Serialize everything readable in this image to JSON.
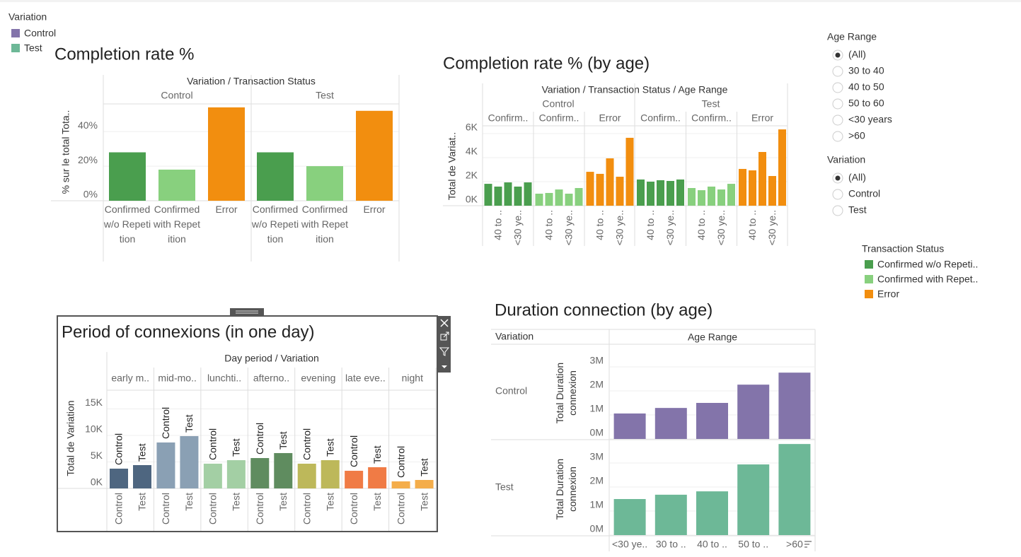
{
  "legend": {
    "title": "Variation",
    "items": [
      {
        "name": "Control",
        "color": "#8374aa"
      },
      {
        "name": "Test",
        "color": "#6db897"
      }
    ]
  },
  "filters": [
    {
      "title": "Age Range",
      "options": [
        "(All)",
        "30 to 40",
        "40 to 50",
        "50 to 60",
        "<30 years",
        ">60"
      ],
      "selected": 0
    },
    {
      "title": "Variation",
      "options": [
        "(All)",
        "Control",
        "Test"
      ],
      "selected": 0
    }
  ],
  "status_legend": {
    "title": "Transaction Status",
    "items": [
      {
        "name": "Confirmed w/o Repeti..",
        "color": "#4a9e4e"
      },
      {
        "name": "Confirmed with Repet..",
        "color": "#88d07e"
      },
      {
        "name": "Error",
        "color": "#f28e0f"
      }
    ]
  },
  "chart_data": [
    {
      "type": "bar",
      "title": "Completion rate %",
      "header": "Variation / Transaction Status",
      "ylabel": "% sur le total Tota..",
      "categories": [
        "Confirmed w/o Repetition",
        "Confirmed with Repetition",
        "Error"
      ],
      "colors": [
        "#4a9e4e",
        "#88d07e",
        "#f28e0f"
      ],
      "series": [
        {
          "name": "Control",
          "values": [
            28,
            18,
            54
          ]
        },
        {
          "name": "Test",
          "values": [
            28,
            20,
            52
          ]
        }
      ],
      "ylim": [
        0,
        56
      ],
      "yticks": [
        {
          "value": 0,
          "label": "0%"
        },
        {
          "value": 20,
          "label": "20%"
        },
        {
          "value": 40,
          "label": "40%"
        }
      ],
      "grid": true
    },
    {
      "type": "bar",
      "title": "Completion rate % (by age)",
      "header": "Variation / Transaction Status / Age Range",
      "ylabel": "Total de Variat..",
      "categories": [
        null,
        "40 to ..",
        null,
        "<30 ye..",
        null
      ],
      "colors": [
        "#4a9e4e",
        "#88d07e",
        "#f28e0f"
      ],
      "groups": [
        {
          "name": "Control",
          "panels": [
            {
              "name": "Confirm..",
              "values": [
                1820,
                1590,
                1940,
                1590,
                1940
              ]
            },
            {
              "name": "Confirm..",
              "values": [
                1000,
                1060,
                1350,
                1000,
                1470
              ]
            },
            {
              "name": "Error",
              "values": [
                2820,
                2650,
                3940,
                2410,
                5650
              ]
            }
          ]
        },
        {
          "name": "Test",
          "panels": [
            {
              "name": "Confirm..",
              "values": [
                2180,
                2000,
                2120,
                2060,
                2180
              ]
            },
            {
              "name": "Confirm..",
              "values": [
                1470,
                1290,
                1590,
                1350,
                1820
              ]
            },
            {
              "name": "Error",
              "values": [
                3060,
                2940,
                4470,
                2470,
                6350
              ]
            }
          ]
        }
      ],
      "ylim": [
        0,
        6500
      ],
      "yticks": [
        {
          "value": 0,
          "label": "0K"
        },
        {
          "value": 2000,
          "label": "2K"
        },
        {
          "value": 4000,
          "label": "4K"
        },
        {
          "value": 6000,
          "label": "6K"
        }
      ],
      "grid": true
    },
    {
      "type": "bar",
      "title": "Period of connexions (in one day)",
      "header": "Day period / Variation",
      "ylabel": "Total de Variation",
      "categories": [
        "Control",
        "Test"
      ],
      "groups": [
        {
          "name": "early m..",
          "color": "#4e6680",
          "values": [
            3730,
            4400
          ]
        },
        {
          "name": "mid-mo..",
          "color": "#8aa0b4",
          "values": [
            8670,
            9870
          ]
        },
        {
          "name": "lunchti..",
          "color": "#a3cfa4",
          "values": [
            4670,
            5330
          ]
        },
        {
          "name": "afterno..",
          "color": "#5f8c5f",
          "values": [
            5730,
            6670
          ]
        },
        {
          "name": "evening",
          "color": "#bdb85a",
          "values": [
            4670,
            5330
          ]
        },
        {
          "name": "late eve..",
          "color": "#f07b45",
          "values": [
            3330,
            4000
          ]
        },
        {
          "name": "night",
          "color": "#f4ad4a",
          "values": [
            1330,
            1600
          ]
        }
      ],
      "ylim": [
        0,
        16400
      ],
      "yticks": [
        {
          "value": 0,
          "label": "0K"
        },
        {
          "value": 5000,
          "label": "5K"
        },
        {
          "value": 10000,
          "label": "10K"
        },
        {
          "value": 15000,
          "label": "15K"
        }
      ],
      "grid": true
    },
    {
      "type": "bar",
      "title": "Duration connection (by age)",
      "row_header": "Variation",
      "column_header": "Age Range",
      "ylabel": "Total Duration connexion",
      "categories": [
        "<30 ye..",
        "30 to ..",
        "40 to ..",
        "50 to ..",
        ">60"
      ],
      "series": [
        {
          "name": "Control",
          "color": "#8374aa",
          "values": [
            1060000,
            1290000,
            1500000,
            2260000,
            2760000
          ]
        },
        {
          "name": "Test",
          "color": "#6db897",
          "values": [
            1500000,
            1680000,
            1820000,
            2940000,
            3790000
          ]
        }
      ],
      "ylim": [
        0,
        4000000
      ],
      "yticks": [
        {
          "value": 0,
          "label": "0M"
        },
        {
          "value": 1000000,
          "label": "1M"
        },
        {
          "value": 2000000,
          "label": "2M"
        },
        {
          "value": 3000000,
          "label": "3M"
        }
      ],
      "grid": true
    }
  ]
}
